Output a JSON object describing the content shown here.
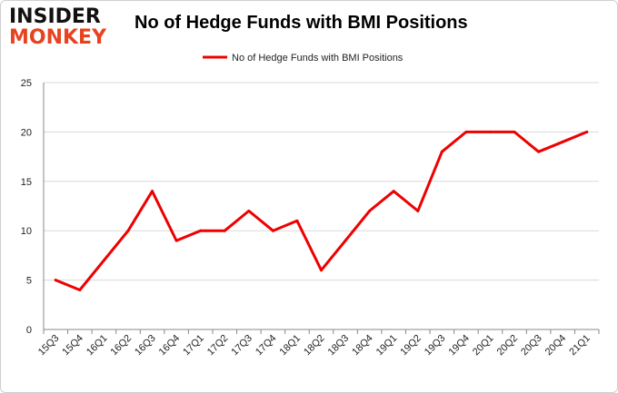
{
  "logo": {
    "top_word": "INSIDER",
    "bottom_word": "MONKEY"
  },
  "colors": {
    "series": "#ee0000",
    "grid": "#d9d9d9",
    "axis": "#888888",
    "logo_accent": "#e8431f"
  },
  "chart_data": {
    "type": "line",
    "title": "No of Hedge Funds with BMI Positions",
    "xlabel": "",
    "ylabel": "",
    "ylim": [
      0,
      25
    ],
    "yticks": [
      0,
      5,
      10,
      15,
      20,
      25
    ],
    "grid": "horizontal",
    "legend_position": "top-center",
    "categories": [
      "15Q3",
      "15Q4",
      "16Q1",
      "16Q2",
      "16Q3",
      "16Q4",
      "17Q1",
      "17Q2",
      "17Q3",
      "17Q4",
      "18Q1",
      "18Q2",
      "18Q3",
      "18Q4",
      "19Q1",
      "19Q2",
      "19Q3",
      "19Q4",
      "20Q1",
      "20Q2",
      "20Q3",
      "20Q4",
      "21Q1"
    ],
    "series": [
      {
        "name": "No of Hedge Funds with BMI Positions",
        "color": "#ee0000",
        "values": [
          5,
          4,
          7,
          10,
          14,
          9,
          10,
          10,
          12,
          10,
          11,
          6,
          9,
          12,
          14,
          12,
          18,
          20,
          20,
          20,
          18,
          19,
          20
        ]
      }
    ]
  }
}
